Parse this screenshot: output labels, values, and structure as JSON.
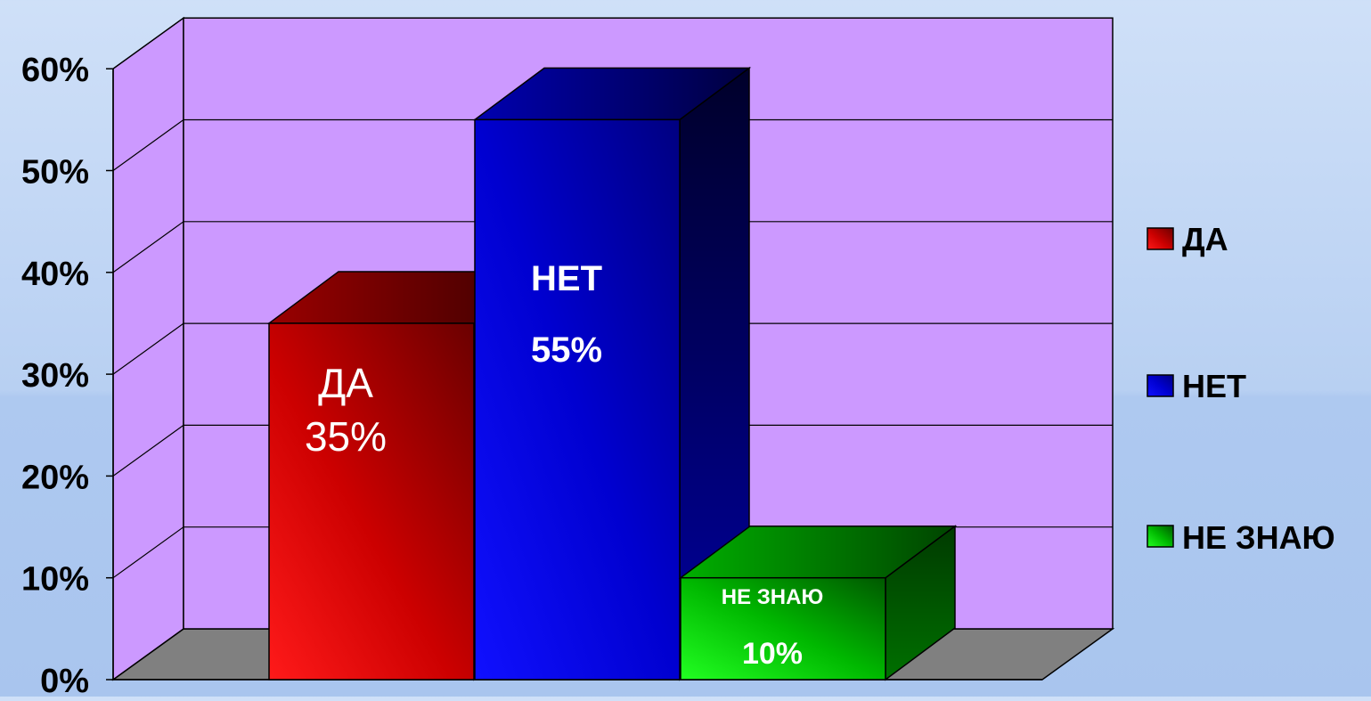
{
  "chart_data": {
    "type": "bar",
    "title": "",
    "xlabel": "",
    "ylabel": "",
    "categories": [
      "ДА",
      "НЕТ",
      "НЕ ЗНАЮ"
    ],
    "values": [
      35,
      55,
      10
    ],
    "value_labels": [
      "35%",
      "55%",
      "10%"
    ],
    "ylim": [
      0,
      60
    ],
    "y_ticks": [
      "0%",
      "10%",
      "20%",
      "30%",
      "40%",
      "50%",
      "60%"
    ],
    "y_tick_values": [
      0,
      10,
      20,
      30,
      40,
      50,
      60
    ],
    "grid": true,
    "style": "3d-column",
    "legend": {
      "position": "right",
      "entries": [
        "ДА",
        "НЕТ",
        "НЕ ЗНАЮ"
      ]
    },
    "colors": {
      "series": [
        "#e00000",
        "#0000e8",
        "#00c400"
      ],
      "wall": "#cc99ff",
      "floor": "#808080"
    }
  }
}
